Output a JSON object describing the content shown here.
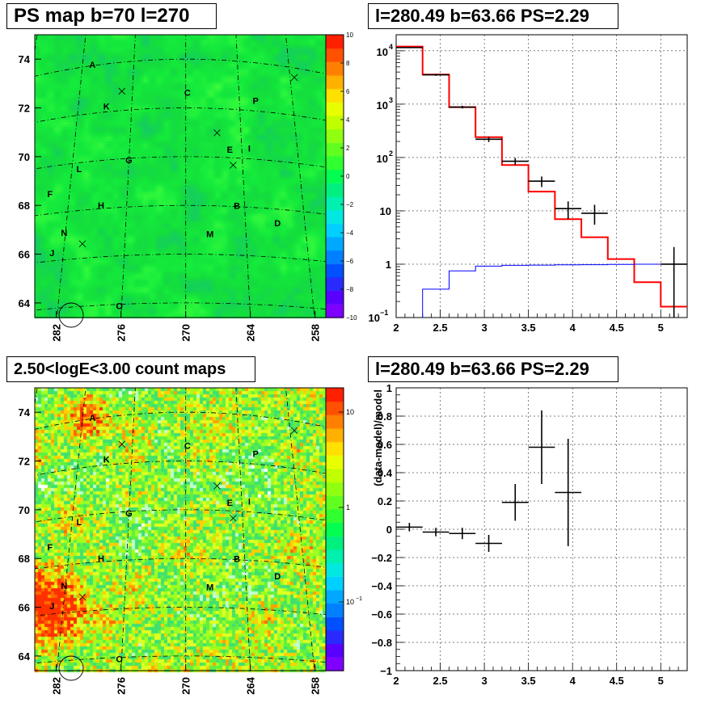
{
  "panels": {
    "ps_map": {
      "title": "PS map b=70 l=270",
      "y_ticks": [
        "74",
        "72",
        "70",
        "68",
        "66",
        "64"
      ],
      "x_ticks": [
        "282",
        "276",
        "270",
        "264",
        "258"
      ],
      "colorbar_ticks": [
        "10",
        "8",
        "6",
        "4",
        "2",
        "0",
        "−2",
        "−4",
        "−6",
        "−8",
        "−10"
      ],
      "sources": [
        "A",
        "C",
        "K",
        "P",
        "E",
        "I",
        "L",
        "G",
        "F",
        "H",
        "B",
        "D",
        "N",
        "M",
        "J",
        "O"
      ]
    },
    "spectrum": {
      "title": "l=280.49 b=63.66 PS=2.29",
      "x_ticks": [
        "2",
        "2.5",
        "3",
        "3.5",
        "4",
        "4.5",
        "5"
      ],
      "y_tick_labels": {
        "base": "10",
        "exps": [
          "4",
          "3",
          "2"
        ],
        "plain": [
          "10",
          "1"
        ],
        "low": "10",
        "low_exp": "−1"
      }
    },
    "count_map": {
      "title": "2.50<logE<3.00 count maps",
      "y_ticks": [
        "74",
        "72",
        "70",
        "68",
        "66",
        "64"
      ],
      "x_ticks": [
        "282",
        "276",
        "270",
        "264",
        "258"
      ],
      "colorbar_ticks": [
        "10",
        "1",
        "10"
      ],
      "colorbar_exp": "−1",
      "sources": [
        "A",
        "C",
        "K",
        "P",
        "E",
        "I",
        "L",
        "G",
        "F",
        "H",
        "B",
        "D",
        "N",
        "M",
        "J",
        "O"
      ]
    },
    "residual": {
      "title": "l=280.49 b=63.66 PS=2.29",
      "ylabel": "(data-model)/model",
      "x_ticks": [
        "2",
        "2.5",
        "3",
        "3.5",
        "4",
        "4.5",
        "5"
      ],
      "y_ticks": [
        "1",
        "0.8",
        "0.6",
        "0.4",
        "0.2",
        "0",
        "−0.2",
        "−0.4",
        "−0.6",
        "−0.8",
        "−1"
      ]
    }
  },
  "chart_data": [
    {
      "type": "heatmap",
      "title": "PS map b=70 l=270",
      "xlim": [
        284,
        257
      ],
      "ylim": [
        63.4,
        75.0
      ],
      "colorbar_range": [
        -10,
        10
      ],
      "markers": [
        {
          "label": "A",
          "l": 280.8,
          "b": 73.9
        },
        {
          "label": "C",
          "l": 269.8,
          "b": 72.5
        },
        {
          "label": "K",
          "l": 278.8,
          "b": 72.1
        },
        {
          "label": "P",
          "l": 262.2,
          "b": 72.3
        },
        {
          "label": "E",
          "l": 265.3,
          "b": 70.2
        },
        {
          "label": "I",
          "l": 263.2,
          "b": 70.3
        },
        {
          "label": "L",
          "l": 281.2,
          "b": 69.6
        },
        {
          "label": "G",
          "l": 276.0,
          "b": 69.8
        },
        {
          "label": "F",
          "l": 284.0,
          "b": 68.7
        },
        {
          "label": "H",
          "l": 278.6,
          "b": 68.0
        },
        {
          "label": "B",
          "l": 264.8,
          "b": 67.9
        },
        {
          "label": "D",
          "l": 260.8,
          "b": 67.3
        },
        {
          "label": "N",
          "l": 282.1,
          "b": 67.0
        },
        {
          "label": "M",
          "l": 267.6,
          "b": 66.7
        },
        {
          "label": "J",
          "l": 283.1,
          "b": 66.2
        },
        {
          "label": "O",
          "l": 276.2,
          "b": 63.8
        }
      ]
    },
    {
      "type": "line",
      "title": "l=280.49 b=63.66 PS=2.29",
      "xlim": [
        2,
        5.3
      ],
      "ylim": [
        0.1,
        20000
      ],
      "yscale": "log",
      "series": [
        {
          "color": "#ff0000",
          "bins": [
            [
              2.0,
              2.3,
              12000
            ],
            [
              2.3,
              2.6,
              3600
            ],
            [
              2.6,
              2.9,
              880
            ],
            [
              2.9,
              3.2,
              240
            ],
            [
              3.2,
              3.5,
              72
            ],
            [
              3.5,
              3.8,
              23
            ],
            [
              3.8,
              4.1,
              7
            ],
            [
              4.1,
              4.4,
              3.2
            ],
            [
              4.4,
              4.7,
              1.25
            ],
            [
              4.7,
              5.0,
              0.46
            ],
            [
              5.0,
              5.3,
              0.16
            ]
          ]
        },
        {
          "color": "#0000ff",
          "bins": [
            [
              2.0,
              2.3,
              0.05
            ],
            [
              2.3,
              2.6,
              0.34
            ],
            [
              2.6,
              2.9,
              0.75
            ],
            [
              2.9,
              3.2,
              0.92
            ],
            [
              3.2,
              3.5,
              0.95
            ],
            [
              3.5,
              3.8,
              0.96
            ],
            [
              3.8,
              4.1,
              0.97
            ],
            [
              4.1,
              4.4,
              0.98
            ],
            [
              4.4,
              4.7,
              0.99
            ],
            [
              4.7,
              5.0,
              1.0
            ],
            [
              5.0,
              5.3,
              1.0
            ]
          ]
        }
      ],
      "points": [
        {
          "x": 2.15,
          "xerr": 0.15,
          "y": 11500,
          "ylo": 11200,
          "yhi": 11800
        },
        {
          "x": 2.45,
          "xerr": 0.15,
          "y": 3550,
          "ylo": 3400,
          "yhi": 3700
        },
        {
          "x": 2.75,
          "xerr": 0.15,
          "y": 880,
          "ylo": 830,
          "yhi": 930
        },
        {
          "x": 3.05,
          "xerr": 0.15,
          "y": 220,
          "ylo": 195,
          "yhi": 245
        },
        {
          "x": 3.35,
          "xerr": 0.15,
          "y": 85,
          "ylo": 72,
          "yhi": 98
        },
        {
          "x": 3.65,
          "xerr": 0.15,
          "y": 36,
          "ylo": 28,
          "yhi": 44
        },
        {
          "x": 3.95,
          "xerr": 0.15,
          "y": 11,
          "ylo": 7,
          "yhi": 15
        },
        {
          "x": 4.25,
          "xerr": 0.15,
          "y": 9,
          "ylo": 5.5,
          "yhi": 13
        },
        {
          "x": 5.15,
          "xerr": 0.15,
          "y": 1.0,
          "ylo": 0.1,
          "yhi": 2.1
        }
      ]
    },
    {
      "type": "heatmap",
      "title": "2.50<logE<3.00 count maps",
      "xlim": [
        284,
        257
      ],
      "ylim": [
        63.4,
        75.0
      ],
      "colorbar": "log"
    },
    {
      "type": "scatter",
      "title": "l=280.49 b=63.66 PS=2.29",
      "ylabel": "(data-model)/model",
      "xlim": [
        2,
        5.3
      ],
      "ylim": [
        -1,
        1
      ],
      "points": [
        {
          "x": 2.15,
          "xerr": 0.15,
          "y": 0.015,
          "yerr": 0.03
        },
        {
          "x": 2.45,
          "xerr": 0.15,
          "y": -0.02,
          "yerr": 0.03
        },
        {
          "x": 2.75,
          "xerr": 0.15,
          "y": -0.03,
          "yerr": 0.04
        },
        {
          "x": 3.05,
          "xerr": 0.15,
          "y": -0.1,
          "yerr": 0.06
        },
        {
          "x": 3.35,
          "xerr": 0.15,
          "y": 0.19,
          "yerr": 0.13
        },
        {
          "x": 3.65,
          "xerr": 0.15,
          "y": 0.58,
          "yerr": 0.26
        },
        {
          "x": 3.95,
          "xerr": 0.15,
          "y": 0.26,
          "yerr": 0.38
        }
      ]
    }
  ]
}
